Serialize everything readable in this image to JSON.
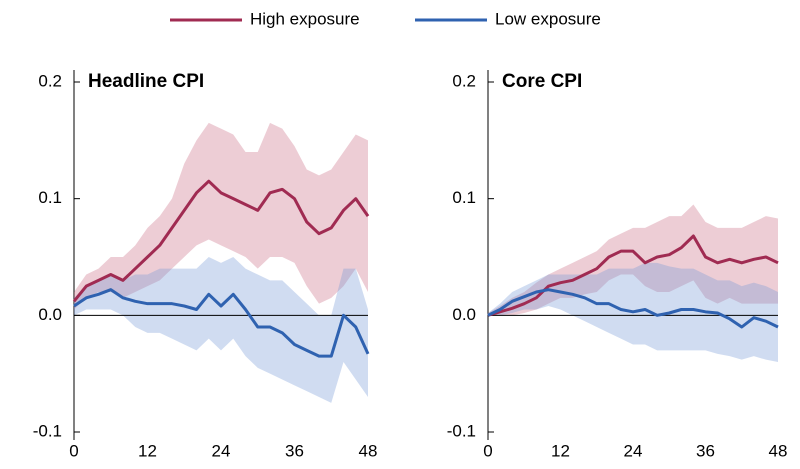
{
  "chart_data": [
    {
      "type": "line",
      "title": "Headline CPI",
      "x": [
        0,
        2,
        4,
        6,
        8,
        10,
        12,
        14,
        16,
        18,
        20,
        22,
        24,
        26,
        28,
        30,
        32,
        34,
        36,
        38,
        40,
        42,
        44,
        46,
        48
      ],
      "xlim": [
        0,
        48
      ],
      "xticks": [
        0,
        12,
        24,
        36,
        48
      ],
      "ylim": [
        -0.1,
        0.2
      ],
      "yticks": [
        0.2,
        0.1,
        {
          "value": 0,
          "label": "0.0"
        },
        -0.1
      ],
      "series": [
        {
          "name": "High exposure",
          "color": "#a02b52",
          "band_color": "rgba(203,112,135,0.35)",
          "values": [
            0.012,
            0.025,
            0.03,
            0.035,
            0.03,
            0.04,
            0.05,
            0.06,
            0.075,
            0.09,
            0.105,
            0.115,
            0.105,
            0.1,
            0.095,
            0.09,
            0.105,
            0.108,
            0.1,
            0.08,
            0.07,
            0.075,
            0.09,
            0.1,
            0.085
          ],
          "band_upper": [
            0.02,
            0.035,
            0.04,
            0.05,
            0.05,
            0.06,
            0.075,
            0.085,
            0.1,
            0.13,
            0.15,
            0.165,
            0.16,
            0.155,
            0.14,
            0.14,
            0.165,
            0.16,
            0.145,
            0.125,
            0.12,
            0.125,
            0.14,
            0.155,
            0.15
          ],
          "band_lower": [
            0.005,
            0.015,
            0.02,
            0.02,
            0.015,
            0.02,
            0.025,
            0.03,
            0.04,
            0.05,
            0.06,
            0.065,
            0.06,
            0.055,
            0.05,
            0.04,
            0.05,
            0.05,
            0.045,
            0.025,
            0.01,
            0.015,
            0.025,
            0.04,
            0.02
          ]
        },
        {
          "name": "Low exposure",
          "color": "#2f62b0",
          "band_color": "rgba(120,155,215,0.35)",
          "values": [
            0.008,
            0.015,
            0.018,
            0.022,
            0.015,
            0.012,
            0.01,
            0.01,
            0.01,
            0.008,
            0.005,
            0.018,
            0.008,
            0.018,
            0.005,
            -0.01,
            -0.01,
            -0.015,
            -0.025,
            -0.03,
            -0.035,
            -0.035,
            0.0,
            -0.01,
            -0.033
          ],
          "band_upper": [
            0.015,
            0.025,
            0.03,
            0.035,
            0.03,
            0.035,
            0.035,
            0.04,
            0.04,
            0.04,
            0.04,
            0.05,
            0.045,
            0.05,
            0.04,
            0.035,
            0.03,
            0.03,
            0.02,
            0.01,
            0.0,
            0.0,
            0.04,
            0.04,
            0.005
          ],
          "band_lower": [
            0.0,
            0.005,
            0.005,
            0.005,
            0.0,
            -0.01,
            -0.015,
            -0.015,
            -0.02,
            -0.025,
            -0.03,
            -0.02,
            -0.03,
            -0.02,
            -0.035,
            -0.045,
            -0.05,
            -0.055,
            -0.06,
            -0.065,
            -0.07,
            -0.075,
            -0.04,
            -0.055,
            -0.07
          ]
        }
      ]
    },
    {
      "type": "line",
      "title": "Core CPI",
      "x": [
        0,
        2,
        4,
        6,
        8,
        10,
        12,
        14,
        16,
        18,
        20,
        22,
        24,
        26,
        28,
        30,
        32,
        34,
        36,
        38,
        40,
        42,
        44,
        46,
        48
      ],
      "xlim": [
        0,
        48
      ],
      "xticks": [
        0,
        12,
        24,
        36,
        48
      ],
      "ylim": [
        -0.1,
        0.2
      ],
      "yticks": [
        0.2,
        0.1,
        {
          "value": 0,
          "label": "0.0"
        },
        -0.1
      ],
      "series": [
        {
          "name": "High exposure",
          "color": "#a02b52",
          "band_color": "rgba(203,112,135,0.35)",
          "values": [
            0.0,
            0.003,
            0.006,
            0.01,
            0.015,
            0.025,
            0.028,
            0.03,
            0.035,
            0.04,
            0.05,
            0.055,
            0.055,
            0.045,
            0.05,
            0.052,
            0.058,
            0.068,
            0.05,
            0.045,
            0.048,
            0.045,
            0.048,
            0.05,
            0.045
          ],
          "band_upper": [
            0.002,
            0.008,
            0.015,
            0.02,
            0.028,
            0.035,
            0.04,
            0.045,
            0.05,
            0.055,
            0.065,
            0.07,
            0.075,
            0.075,
            0.08,
            0.085,
            0.085,
            0.095,
            0.08,
            0.075,
            0.075,
            0.075,
            0.08,
            0.085,
            0.083
          ],
          "band_lower": [
            0.0,
            0.0,
            0.0,
            0.002,
            0.005,
            0.01,
            0.015,
            0.015,
            0.018,
            0.02,
            0.03,
            0.035,
            0.035,
            0.025,
            0.02,
            0.02,
            0.025,
            0.03,
            0.015,
            0.01,
            0.015,
            0.01,
            0.01,
            0.01,
            0.01
          ]
        },
        {
          "name": "Low exposure",
          "color": "#2f62b0",
          "band_color": "rgba(120,155,215,0.35)",
          "values": [
            0.0,
            0.005,
            0.012,
            0.016,
            0.02,
            0.022,
            0.02,
            0.018,
            0.015,
            0.01,
            0.01,
            0.005,
            0.003,
            0.005,
            0.0,
            0.002,
            0.005,
            0.005,
            0.003,
            0.002,
            -0.003,
            -0.01,
            -0.002,
            -0.005,
            -0.01
          ],
          "band_upper": [
            0.002,
            0.01,
            0.02,
            0.025,
            0.03,
            0.035,
            0.035,
            0.035,
            0.035,
            0.035,
            0.04,
            0.04,
            0.04,
            0.045,
            0.045,
            0.042,
            0.04,
            0.04,
            0.035,
            0.03,
            0.03,
            0.025,
            0.028,
            0.025,
            0.02
          ],
          "band_lower": [
            0.0,
            0.0,
            0.002,
            0.005,
            0.005,
            0.008,
            0.005,
            0.0,
            -0.005,
            -0.01,
            -0.015,
            -0.02,
            -0.025,
            -0.025,
            -0.03,
            -0.03,
            -0.03,
            -0.03,
            -0.03,
            -0.033,
            -0.035,
            -0.038,
            -0.035,
            -0.038,
            -0.04
          ]
        }
      ]
    }
  ]
}
